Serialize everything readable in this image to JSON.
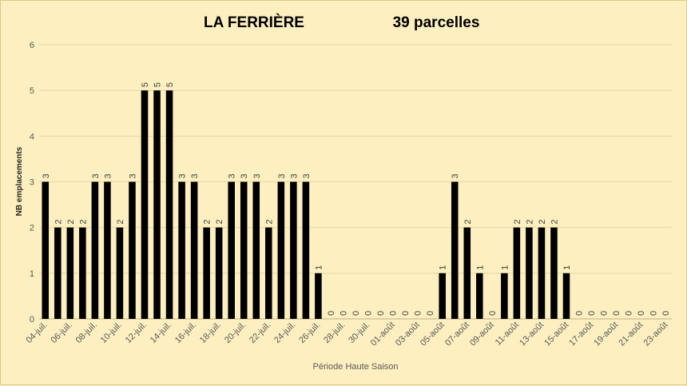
{
  "chart_data": {
    "type": "bar",
    "title": "LA FERRIÈRE",
    "subtitle": "39 parcelles",
    "xlabel": "Période Haute Saison",
    "ylabel": "NB emplacements",
    "ylim": [
      0,
      6
    ],
    "yticks": [
      0,
      1,
      2,
      3,
      4,
      5,
      6
    ],
    "grid": "horizontal",
    "bar_color": "#000000",
    "grid_color": "#e6d7a3",
    "categories": [
      "04-juil.",
      "05-juil.",
      "06-juil.",
      "07-juil.",
      "08-juil.",
      "09-juil.",
      "10-juil.",
      "11-juil.",
      "12-juil.",
      "13-juil.",
      "14-juil.",
      "15-juil.",
      "16-juil.",
      "17-juil.",
      "18-juil.",
      "19-juil.",
      "20-juil.",
      "21-juil.",
      "22-juil.",
      "23-juil.",
      "24-juil.",
      "25-juil.",
      "26-juil.",
      "27-juil.",
      "28-juil.",
      "29-juil.",
      "30-juil.",
      "31-juil.",
      "01-août",
      "02-août",
      "03-août",
      "04-août",
      "05-août",
      "06-août",
      "07-août",
      "08-août",
      "09-août",
      "10-août",
      "11-août",
      "12-août",
      "13-août",
      "14-août",
      "15-août",
      "16-août",
      "17-août",
      "18-août",
      "19-août",
      "20-août",
      "21-août",
      "22-août",
      "23-août"
    ],
    "shown_tick_labels": [
      "04-juil.",
      "06-juil.",
      "08-juil.",
      "10-juil.",
      "12-juil.",
      "14-juil.",
      "16-juil.",
      "18-juil.",
      "20-juil.",
      "22-juil.",
      "24-juil.",
      "26-juil.",
      "28-juil.",
      "30-juil.",
      "01-août",
      "03-août",
      "05-août",
      "07-août",
      "09-août",
      "11-août",
      "13-août",
      "15-août",
      "17-août",
      "19-août",
      "21-août",
      "23-août"
    ],
    "values": [
      3,
      2,
      2,
      2,
      3,
      3,
      2,
      3,
      5,
      5,
      5,
      3,
      3,
      2,
      2,
      3,
      3,
      3,
      2,
      3,
      3,
      3,
      1,
      0,
      0,
      0,
      0,
      0,
      0,
      0,
      0,
      0,
      1,
      3,
      2,
      1,
      0,
      1,
      2,
      2,
      2,
      2,
      1,
      0,
      0,
      0,
      0,
      0,
      0,
      0,
      0
    ]
  }
}
